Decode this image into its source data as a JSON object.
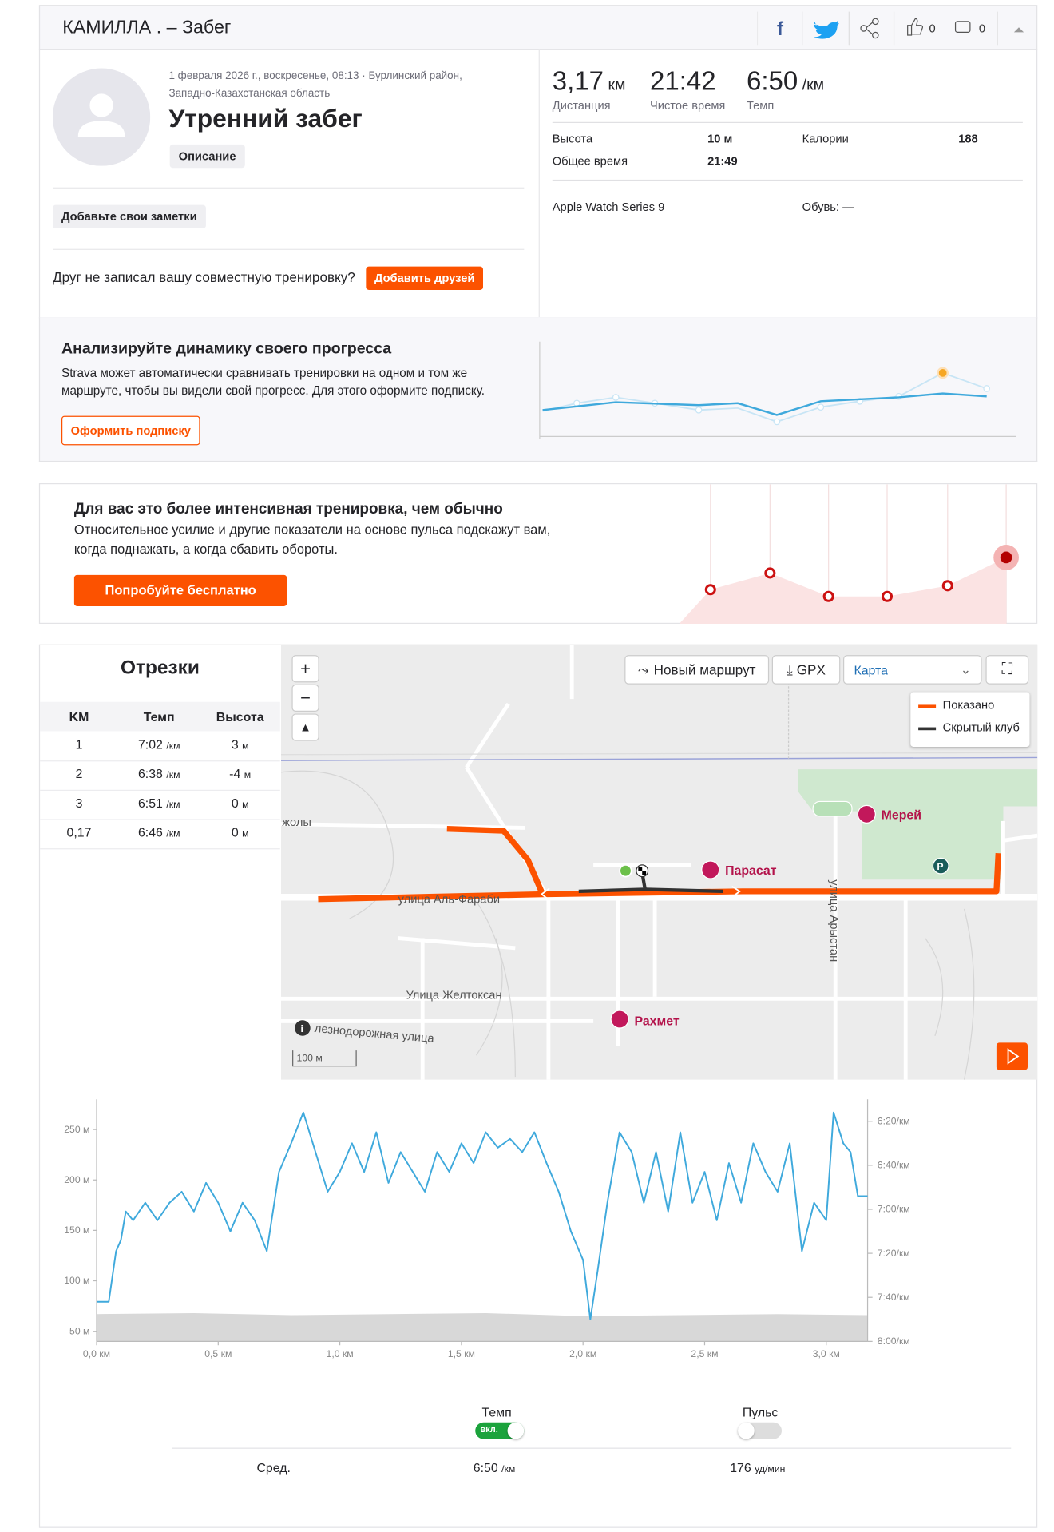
{
  "header": {
    "title": "КАМИЛЛА . – Забег",
    "kudos": "0",
    "comments": "0"
  },
  "activity": {
    "date": "1 февраля 2026 г., воскресенье, 08:13 · Бурлинский район,",
    "region": "Западно-Казахстанская область",
    "name": "Утренний забег",
    "description_button": "Описание",
    "notes_button": "Добавьте свои заметки",
    "friends_text": "Друг не записал вашу совместную тренировку?",
    "friends_button": "Добавить друзей"
  },
  "stats": {
    "primary": [
      {
        "value": "3,17",
        "unit": "км",
        "label": "Дистанция"
      },
      {
        "value": "21:42",
        "label": "Чистое время"
      },
      {
        "value": "6:50",
        "unit": "/км",
        "label": "Темп"
      }
    ],
    "secondary": [
      {
        "label": "Высота",
        "value": "10 м"
      },
      {
        "label": "Общее время",
        "value": "21:49"
      },
      {
        "label": "Калории",
        "value": "188"
      }
    ],
    "device": "Apple Watch Series 9",
    "shoes": "Обувь: —"
  },
  "promo_progress": {
    "title": "Анализируйте динамику своего прогресса",
    "line1": "Strava может автоматически сравнивать тренировки на одном и том же",
    "line2": "маршруте, чтобы вы видели свой прогресс. Для этого оформите подписку.",
    "button": "Оформить подписку"
  },
  "promo_effort": {
    "title": "Для вас это более интенсивная тренировка, чем обычно",
    "line1": "Относительное усилие и другие показатели на основе пульса подскажут вам,",
    "line2": "когда поднажать, а когда сбавить обороты.",
    "button": "Попробуйте бесплатно"
  },
  "segments": {
    "title": "Отрезки",
    "columns": [
      "KM",
      "Темп",
      "Высота"
    ],
    "rows": [
      {
        "km": "1",
        "pace": "7:02",
        "pace_unit": "/км",
        "elev": "3",
        "elev_unit": "м"
      },
      {
        "km": "2",
        "pace": "6:38",
        "pace_unit": "/км",
        "elev": "-4",
        "elev_unit": "м"
      },
      {
        "km": "3",
        "pace": "6:51",
        "pace_unit": "/км",
        "elev": "0",
        "elev_unit": "м"
      },
      {
        "km": "0,17",
        "pace": "6:46",
        "pace_unit": "/км",
        "elev": "0",
        "elev_unit": "м"
      }
    ]
  },
  "map": {
    "new_route": "Новый маршрут",
    "gpx": "GPX",
    "layer": "Карта",
    "legend": [
      "Показано",
      "Скрытый клуб"
    ],
    "streets": [
      "улица Аль-Фараби",
      "Улица Желтоксан",
      "улица Арыстан",
      "лезнодорожная улица",
      "жолы"
    ],
    "pois": [
      "Мерей",
      "Парасат",
      "Рахмет"
    ],
    "scale": "100 м"
  },
  "chart_data": {
    "type": "line",
    "x": [
      0,
      0.05,
      0.08,
      0.1,
      0.12,
      0.15,
      0.2,
      0.25,
      0.3,
      0.35,
      0.4,
      0.45,
      0.5,
      0.55,
      0.6,
      0.65,
      0.7,
      0.75,
      0.8,
      0.85,
      0.9,
      0.95,
      1.0,
      1.05,
      1.1,
      1.15,
      1.2,
      1.25,
      1.3,
      1.35,
      1.4,
      1.45,
      1.5,
      1.55,
      1.6,
      1.65,
      1.7,
      1.75,
      1.8,
      1.85,
      1.9,
      1.95,
      2.0,
      2.03,
      2.06,
      2.1,
      2.15,
      2.2,
      2.25,
      2.3,
      2.35,
      2.4,
      2.45,
      2.5,
      2.55,
      2.6,
      2.65,
      2.7,
      2.75,
      2.8,
      2.85,
      2.9,
      2.95,
      3.0,
      3.03,
      3.07,
      3.1,
      3.13,
      3.17
    ],
    "series": [
      {
        "name": "Темп",
        "color": "#3fa9dc",
        "axis": "y2",
        "values": [
          462,
          462,
          439,
          434,
          421,
          425,
          417,
          425,
          417,
          412,
          421,
          408,
          417,
          430,
          417,
          425,
          439,
          403,
          390,
          376,
          394,
          412,
          403,
          390,
          403,
          385,
          408,
          394,
          403,
          412,
          394,
          403,
          390,
          399,
          385,
          392,
          388,
          394,
          385,
          399,
          412,
          430,
          443,
          470,
          448,
          417,
          385,
          394,
          417,
          394,
          421,
          385,
          417,
          403,
          425,
          399,
          417,
          390,
          403,
          412,
          390,
          439,
          417,
          425,
          376,
          390,
          394,
          414,
          414
        ]
      }
    ],
    "elevation": {
      "color": "#d8d8d8",
      "x": [
        0,
        0.4,
        0.8,
        1.2,
        1.6,
        2.0,
        2.4,
        2.8,
        3.17
      ],
      "values": [
        67,
        68,
        66,
        67,
        68,
        65,
        66,
        67,
        66
      ]
    },
    "xlim": [
      0,
      3.17
    ],
    "xticks": [
      {
        "value": 0,
        "label": "0,0 км"
      },
      {
        "value": 0.5,
        "label": "0,5 км"
      },
      {
        "value": 1,
        "label": "1,0 км"
      },
      {
        "value": 1.5,
        "label": "1,5 км"
      },
      {
        "value": 2,
        "label": "2,0 км"
      },
      {
        "value": 2.5,
        "label": "2,5 км"
      },
      {
        "value": 3,
        "label": "3,0 км"
      }
    ],
    "ylim": [
      40,
      280
    ],
    "yticks": [
      {
        "value": 50,
        "label": "50 м"
      },
      {
        "value": 100,
        "label": "100 м"
      },
      {
        "value": 150,
        "label": "150 м"
      },
      {
        "value": 200,
        "label": "200 м"
      },
      {
        "value": 250,
        "label": "250 м"
      }
    ],
    "y2lim": [
      480,
      370
    ],
    "y2ticks": [
      {
        "value": 380,
        "label": "6:20/км"
      },
      {
        "value": 400,
        "label": "6:40/км"
      },
      {
        "value": 420,
        "label": "7:00/км"
      },
      {
        "value": 440,
        "label": "7:20/км"
      },
      {
        "value": 460,
        "label": "7:40/км"
      },
      {
        "value": 480,
        "label": "8:00/км"
      }
    ]
  },
  "footer": {
    "toggle_on": "вкл.",
    "hr_label": "Пульс",
    "avg_label": "Сред.",
    "avg_pace": "6:50",
    "avg_pace_unit": "/км",
    "avg_hr": "176",
    "avg_hr_unit": "уд/мин"
  }
}
